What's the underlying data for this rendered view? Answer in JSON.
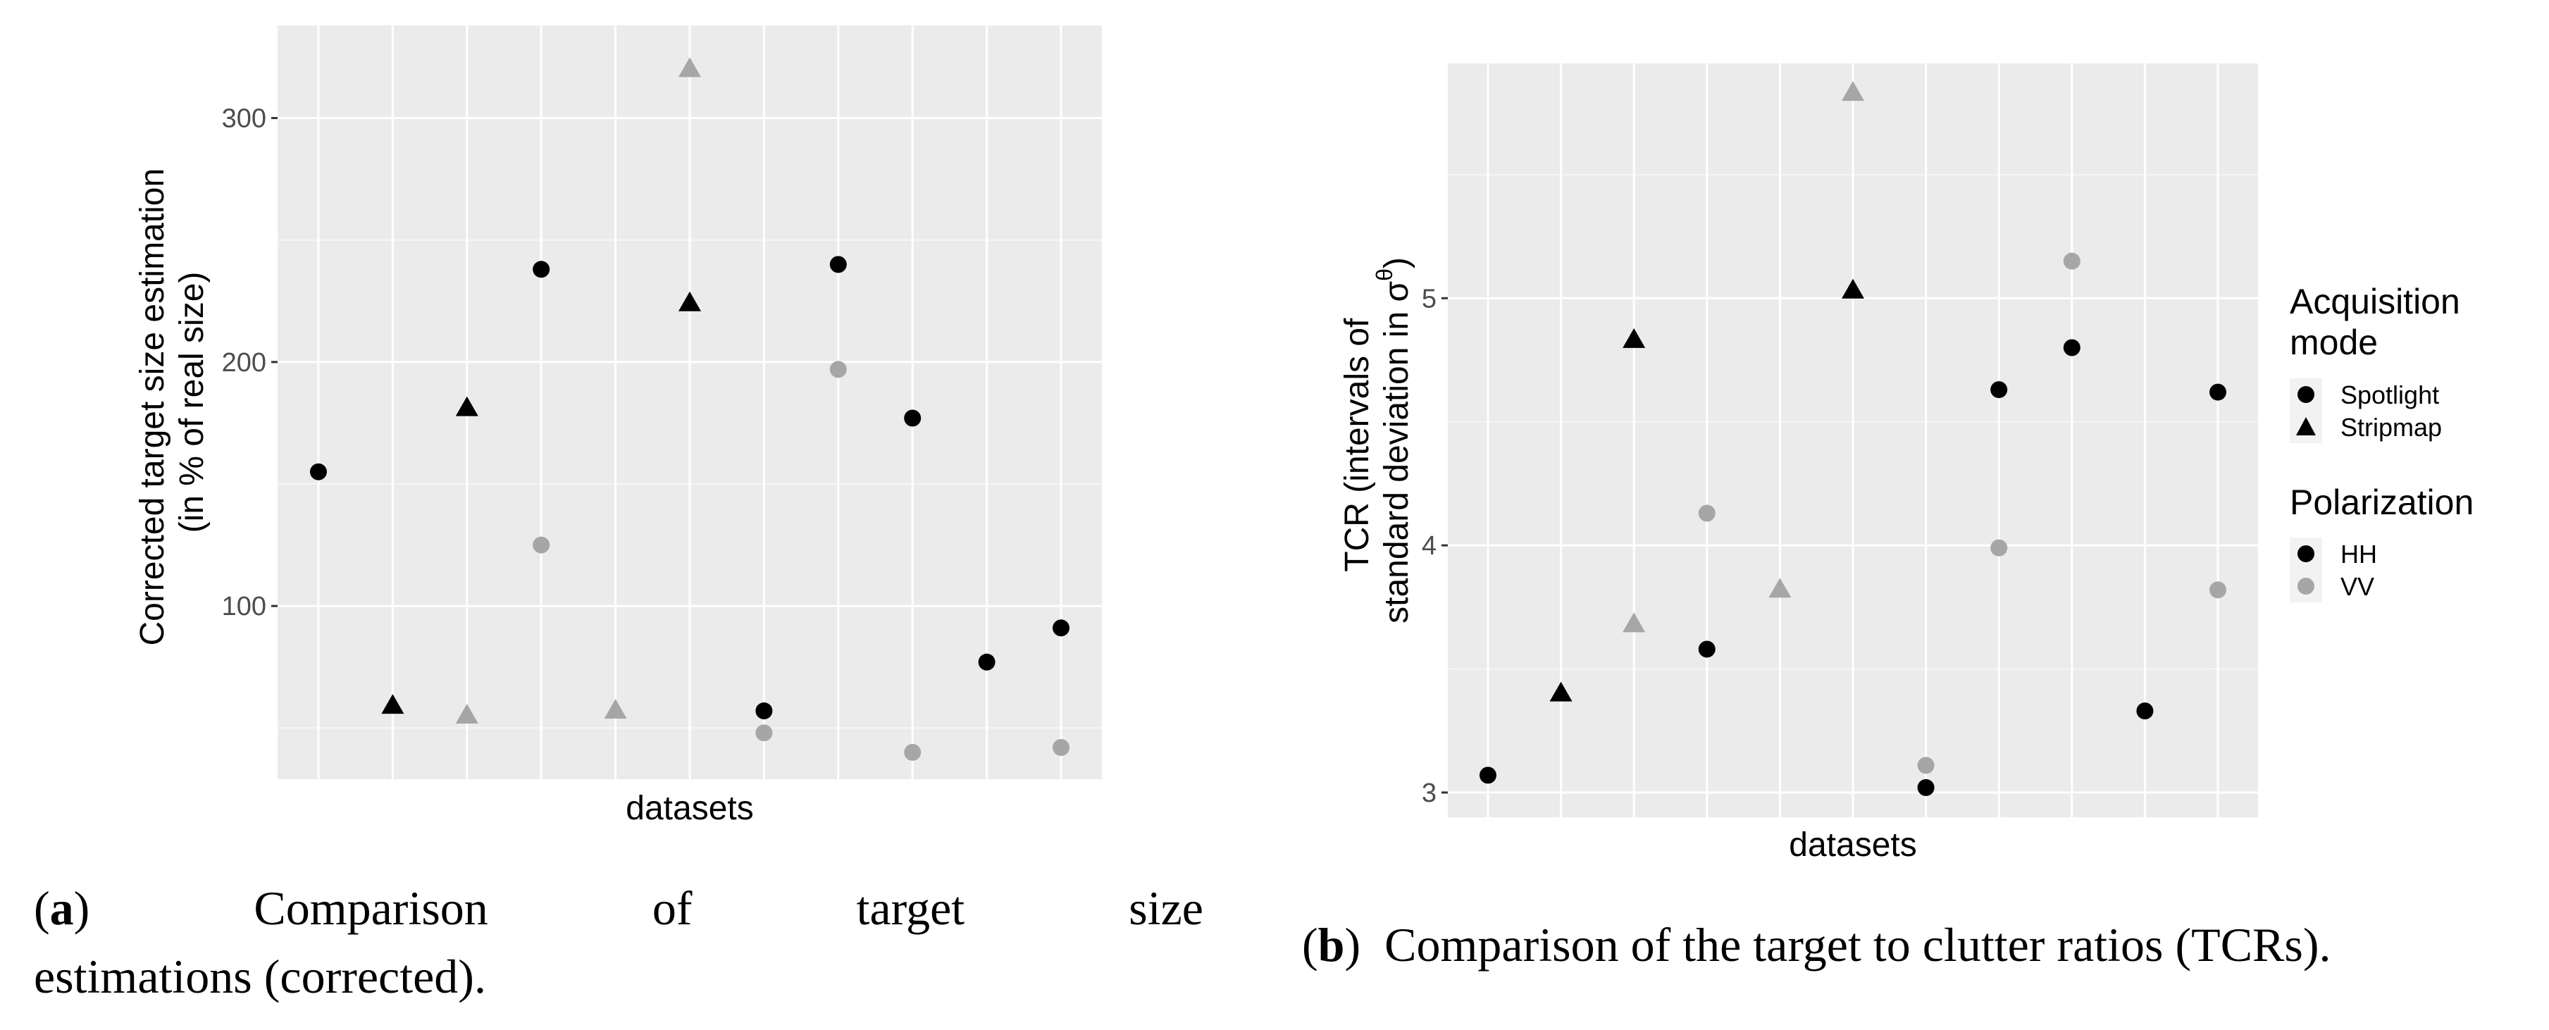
{
  "colors": {
    "panel": "#ebebeb",
    "grid_major": "#ffffff",
    "grid_minor": "#f5f5f5",
    "HH": "#000000",
    "VV": "#a6a6a6"
  },
  "chart_data": [
    {
      "id": "a",
      "type": "scatter",
      "xlabel": "datasets",
      "ylabel": [
        "Corrected target size estimation",
        "(in % of real size)"
      ],
      "ylim": [
        29,
        338
      ],
      "yticks": [
        100,
        200,
        300
      ],
      "yminor": [
        50,
        150,
        250
      ],
      "n_x": 11,
      "points": [
        {
          "x": 1,
          "y": 155,
          "mode": "Spotlight",
          "pol": "HH"
        },
        {
          "x": 2,
          "y": 59,
          "mode": "Stripmap",
          "pol": "HH"
        },
        {
          "x": 3,
          "y": 55,
          "mode": "Stripmap",
          "pol": "VV"
        },
        {
          "x": 3,
          "y": 181,
          "mode": "Stripmap",
          "pol": "HH"
        },
        {
          "x": 4,
          "y": 238,
          "mode": "Spotlight",
          "pol": "HH"
        },
        {
          "x": 4,
          "y": 125,
          "mode": "Spotlight",
          "pol": "VV"
        },
        {
          "x": 5,
          "y": 57,
          "mode": "Stripmap",
          "pol": "VV"
        },
        {
          "x": 6,
          "y": 320,
          "mode": "Stripmap",
          "pol": "VV"
        },
        {
          "x": 6,
          "y": 224,
          "mode": "Stripmap",
          "pol": "HH"
        },
        {
          "x": 7,
          "y": 57,
          "mode": "Spotlight",
          "pol": "HH"
        },
        {
          "x": 7,
          "y": 48,
          "mode": "Spotlight",
          "pol": "VV"
        },
        {
          "x": 8,
          "y": 240,
          "mode": "Spotlight",
          "pol": "HH"
        },
        {
          "x": 8,
          "y": 197,
          "mode": "Spotlight",
          "pol": "VV"
        },
        {
          "x": 9,
          "y": 177,
          "mode": "Spotlight",
          "pol": "HH"
        },
        {
          "x": 9,
          "y": 40,
          "mode": "Spotlight",
          "pol": "VV"
        },
        {
          "x": 10,
          "y": 77,
          "mode": "Spotlight",
          "pol": "HH"
        },
        {
          "x": 11,
          "y": 91,
          "mode": "Spotlight",
          "pol": "HH"
        },
        {
          "x": 11,
          "y": 42,
          "mode": "Spotlight",
          "pol": "VV"
        }
      ]
    },
    {
      "id": "b",
      "type": "scatter",
      "xlabel": "datasets",
      "ylabel": [
        "TCR (intervals of",
        "standard deviation in σ"
      ],
      "ylabel_sup": "θ",
      "ylabel_close": ")",
      "ylim": [
        2.9,
        5.95
      ],
      "yticks": [
        3,
        4,
        5
      ],
      "yminor": [
        3.5,
        4.5,
        5.5
      ],
      "n_x": 11,
      "points": [
        {
          "x": 1,
          "y": 3.07,
          "mode": "Spotlight",
          "pol": "HH"
        },
        {
          "x": 2,
          "y": 3.4,
          "mode": "Stripmap",
          "pol": "HH"
        },
        {
          "x": 3,
          "y": 4.83,
          "mode": "Stripmap",
          "pol": "HH"
        },
        {
          "x": 3,
          "y": 3.68,
          "mode": "Stripmap",
          "pol": "VV"
        },
        {
          "x": 4,
          "y": 4.13,
          "mode": "Spotlight",
          "pol": "VV"
        },
        {
          "x": 4,
          "y": 3.58,
          "mode": "Spotlight",
          "pol": "HH"
        },
        {
          "x": 5,
          "y": 3.82,
          "mode": "Stripmap",
          "pol": "VV"
        },
        {
          "x": 6,
          "y": 5.83,
          "mode": "Stripmap",
          "pol": "VV"
        },
        {
          "x": 6,
          "y": 5.03,
          "mode": "Stripmap",
          "pol": "HH"
        },
        {
          "x": 7,
          "y": 3.11,
          "mode": "Spotlight",
          "pol": "VV"
        },
        {
          "x": 7,
          "y": 3.02,
          "mode": "Spotlight",
          "pol": "HH"
        },
        {
          "x": 8,
          "y": 4.63,
          "mode": "Spotlight",
          "pol": "HH"
        },
        {
          "x": 8,
          "y": 3.99,
          "mode": "Spotlight",
          "pol": "VV"
        },
        {
          "x": 9,
          "y": 5.15,
          "mode": "Spotlight",
          "pol": "VV"
        },
        {
          "x": 9,
          "y": 4.8,
          "mode": "Spotlight",
          "pol": "HH"
        },
        {
          "x": 10,
          "y": 3.33,
          "mode": "Spotlight",
          "pol": "HH"
        },
        {
          "x": 11,
          "y": 4.62,
          "mode": "Spotlight",
          "pol": "HH"
        },
        {
          "x": 11,
          "y": 3.82,
          "mode": "Spotlight",
          "pol": "VV"
        }
      ]
    }
  ],
  "legend": {
    "mode_title": [
      "Acquisition",
      "mode"
    ],
    "mode_items": [
      "Spotlight",
      "Stripmap"
    ],
    "pol_title": "Polarization",
    "pol_items": [
      "HH",
      "VV"
    ]
  },
  "captions": {
    "a": {
      "label": "a",
      "line1_words": [
        "Comparison",
        "of",
        "target",
        "size"
      ],
      "line2": "estimations (corrected)."
    },
    "b": {
      "label": "b",
      "text": "Comparison of the target to clutter ratios (TCRs)."
    }
  }
}
